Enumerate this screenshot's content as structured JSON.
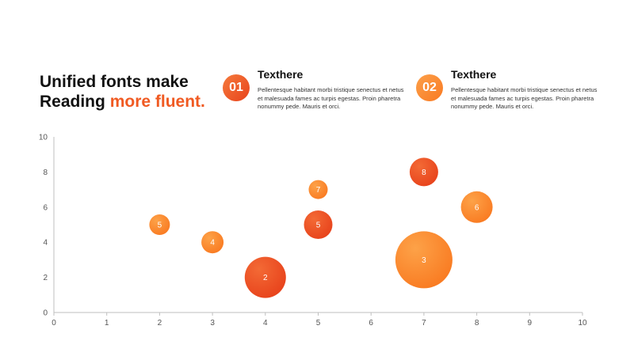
{
  "headline": {
    "line1": "Unified fonts make",
    "line2_prefix": "Reading ",
    "line2_accent": "more fluent."
  },
  "features": [
    {
      "number": "01",
      "title": "Texthere",
      "description": "Pellentesque habitant morbi tristique senectus et netus et malesuada fames ac turpis egestas. Proin pharetra nonummy pede. Mauris et orci."
    },
    {
      "number": "02",
      "title": "Texthere",
      "description": "Pellentesque habitant morbi tristique senectus et netus et malesuada fames ac turpis egestas. Proin pharetra nonummy pede. Mauris et orci."
    }
  ],
  "colors": {
    "accent": "#f05a22",
    "bubble_dark": "#ef4f23",
    "bubble_light": "#fb8a28"
  },
  "chart_data": {
    "type": "scatter",
    "variant": "bubble",
    "title": "",
    "xlabel": "",
    "ylabel": "",
    "xlim": [
      0,
      10
    ],
    "ylim": [
      0,
      10
    ],
    "x_ticks": [
      0,
      1,
      2,
      3,
      4,
      5,
      6,
      7,
      8,
      9,
      10
    ],
    "y_ticks": [
      0,
      2,
      4,
      6,
      8,
      10
    ],
    "grid": false,
    "legend": "none",
    "points": [
      {
        "x": 2,
        "y": 5,
        "size": 5,
        "label": "5",
        "tone": "light"
      },
      {
        "x": 3,
        "y": 4,
        "size": 4,
        "label": "4",
        "tone": "light"
      },
      {
        "x": 4,
        "y": 2,
        "size": 2,
        "label": "2",
        "tone": "dark"
      },
      {
        "x": 5,
        "y": 7,
        "size": 7,
        "label": "7",
        "tone": "light"
      },
      {
        "x": 5,
        "y": 5,
        "size": 5,
        "label": "5",
        "tone": "dark"
      },
      {
        "x": 7,
        "y": 8,
        "size": 8,
        "label": "8",
        "tone": "dark"
      },
      {
        "x": 7,
        "y": 3,
        "size": 3,
        "label": "3",
        "tone": "light"
      },
      {
        "x": 8,
        "y": 6,
        "size": 6,
        "label": "6",
        "tone": "light"
      }
    ]
  }
}
